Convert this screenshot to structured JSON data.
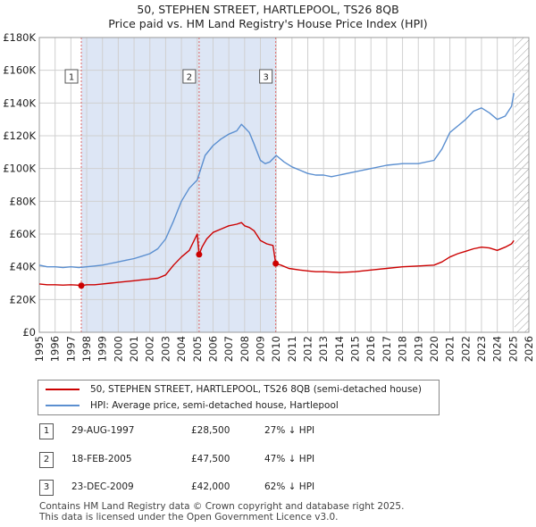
{
  "title": "50, STEPHEN STREET, HARTLEPOOL, TS26 8QB",
  "subtitle": "Price paid vs. HM Land Registry's House Price Index (HPI)",
  "colors": {
    "property": "#cc0000",
    "hpi": "#5b8fd0",
    "shade": "#dde6f5",
    "grid": "#d0d0d0",
    "sale_marker": "#cc0000"
  },
  "chart_data": {
    "type": "line",
    "xlim": [
      1995,
      2026
    ],
    "ylim": [
      0,
      180000
    ],
    "x_ticks": [
      1995,
      1996,
      1997,
      1998,
      1999,
      2000,
      2001,
      2002,
      2003,
      2004,
      2005,
      2006,
      2007,
      2008,
      2009,
      2010,
      2011,
      2012,
      2013,
      2014,
      2015,
      2016,
      2017,
      2018,
      2019,
      2020,
      2021,
      2022,
      2023,
      2024,
      2025,
      2026
    ],
    "y_ticks": [
      0,
      20000,
      40000,
      60000,
      80000,
      100000,
      120000,
      140000,
      160000,
      180000
    ],
    "y_tick_labels": [
      "£0",
      "£20K",
      "£40K",
      "£60K",
      "£80K",
      "£100K",
      "£120K",
      "£140K",
      "£160K",
      "£180K"
    ],
    "x_tick_labels": [
      "1995",
      "1996",
      "1997",
      "1998",
      "1999",
      "2000",
      "2001",
      "2002",
      "2003",
      "2004",
      "2005",
      "2006",
      "2007",
      "2008",
      "2009",
      "2010",
      "2011",
      "2012",
      "2013",
      "2014",
      "2015",
      "2016",
      "2017",
      "2018",
      "2019",
      "2020",
      "2021",
      "2022",
      "2023",
      "2024",
      "2025",
      "2026"
    ],
    "future_from": 2025.1,
    "series": [
      {
        "name": "50, STEPHEN STREET, HARTLEPOOL, TS26 8QB (semi-detached house)",
        "key": "property",
        "x": [
          1995.0,
          1995.5,
          1996.0,
          1996.5,
          1997.0,
          1997.4,
          1997.66,
          1998.0,
          1998.5,
          1999.0,
          1999.5,
          2000.0,
          2000.5,
          2001.0,
          2001.5,
          2002.0,
          2002.5,
          2003.0,
          2003.5,
          2004.0,
          2004.5,
          2005.0,
          2005.12,
          2005.3,
          2005.6,
          2006.0,
          2006.5,
          2007.0,
          2007.5,
          2007.8,
          2008.0,
          2008.3,
          2008.6,
          2009.0,
          2009.4,
          2009.8,
          2009.97,
          2010.3,
          2010.8,
          2011.5,
          2012.0,
          2012.5,
          2013.0,
          2014.0,
          2015.0,
          2016.0,
          2017.0,
          2018.0,
          2019.0,
          2020.0,
          2020.5,
          2021.0,
          2021.5,
          2022.0,
          2022.5,
          2023.0,
          2023.5,
          2024.0,
          2024.5,
          2024.9,
          2025.05
        ],
        "y": [
          29500,
          29000,
          29000,
          28800,
          29000,
          28800,
          28500,
          29000,
          29000,
          29500,
          30000,
          30500,
          31000,
          31500,
          32000,
          32500,
          33000,
          35000,
          41000,
          46000,
          50000,
          60000,
          47500,
          52000,
          57000,
          61000,
          63000,
          65000,
          66000,
          67000,
          65000,
          64000,
          62000,
          56000,
          54000,
          53000,
          42000,
          41000,
          39000,
          38000,
          37500,
          37000,
          37000,
          36500,
          37000,
          38000,
          39000,
          40000,
          40500,
          41000,
          43000,
          46000,
          48000,
          49500,
          51000,
          52000,
          51500,
          50000,
          52000,
          54000,
          56000
        ]
      },
      {
        "name": "HPI: Average price, semi-detached house, Hartlepool",
        "key": "hpi",
        "x": [
          1995.0,
          1995.5,
          1996.0,
          1996.5,
          1997.0,
          1997.5,
          1998.0,
          1998.5,
          1999.0,
          1999.5,
          2000.0,
          2000.5,
          2001.0,
          2001.5,
          2002.0,
          2002.5,
          2003.0,
          2003.5,
          2004.0,
          2004.5,
          2005.0,
          2005.5,
          2006.0,
          2006.5,
          2007.0,
          2007.5,
          2007.8,
          2008.0,
          2008.3,
          2008.6,
          2009.0,
          2009.3,
          2009.6,
          2010.0,
          2010.5,
          2011.0,
          2011.5,
          2012.0,
          2012.5,
          2013.0,
          2013.5,
          2014.0,
          2015.0,
          2016.0,
          2017.0,
          2018.0,
          2019.0,
          2020.0,
          2020.5,
          2021.0,
          2021.5,
          2022.0,
          2022.5,
          2023.0,
          2023.5,
          2024.0,
          2024.5,
          2024.9,
          2025.05
        ],
        "y": [
          41000,
          40000,
          40000,
          39500,
          40000,
          39500,
          40000,
          40500,
          41000,
          42000,
          43000,
          44000,
          45000,
          46500,
          48000,
          51000,
          57000,
          68000,
          80000,
          88000,
          93000,
          108000,
          114000,
          118000,
          121000,
          123000,
          127000,
          125000,
          122000,
          115000,
          105000,
          103000,
          104000,
          108000,
          104000,
          101000,
          99000,
          97000,
          96000,
          96000,
          95000,
          96000,
          98000,
          100000,
          102000,
          103000,
          103000,
          105000,
          112000,
          122000,
          126000,
          130000,
          135000,
          137000,
          134000,
          130000,
          132000,
          138000,
          146000
        ]
      }
    ],
    "sales": [
      {
        "label": "1",
        "x": 1997.66,
        "y": 28500
      },
      {
        "label": "2",
        "x": 2005.12,
        "y": 47500
      },
      {
        "label": "3",
        "x": 2009.97,
        "y": 42000
      }
    ]
  },
  "legend": {
    "property_label": "50, STEPHEN STREET, HARTLEPOOL, TS26 8QB (semi-detached house)",
    "hpi_label": "HPI: Average price, semi-detached house, Hartlepool"
  },
  "transactions": [
    {
      "num": "1",
      "date": "29-AUG-1997",
      "price": "£28,500",
      "hpi": "27% ↓ HPI"
    },
    {
      "num": "2",
      "date": "18-FEB-2005",
      "price": "£47,500",
      "hpi": "47% ↓ HPI"
    },
    {
      "num": "3",
      "date": "23-DEC-2009",
      "price": "£42,000",
      "hpi": "62% ↓ HPI"
    }
  ],
  "footer": "Contains HM Land Registry data © Crown copyright and database right 2025.\nThis data is licensed under the Open Government Licence v3.0."
}
